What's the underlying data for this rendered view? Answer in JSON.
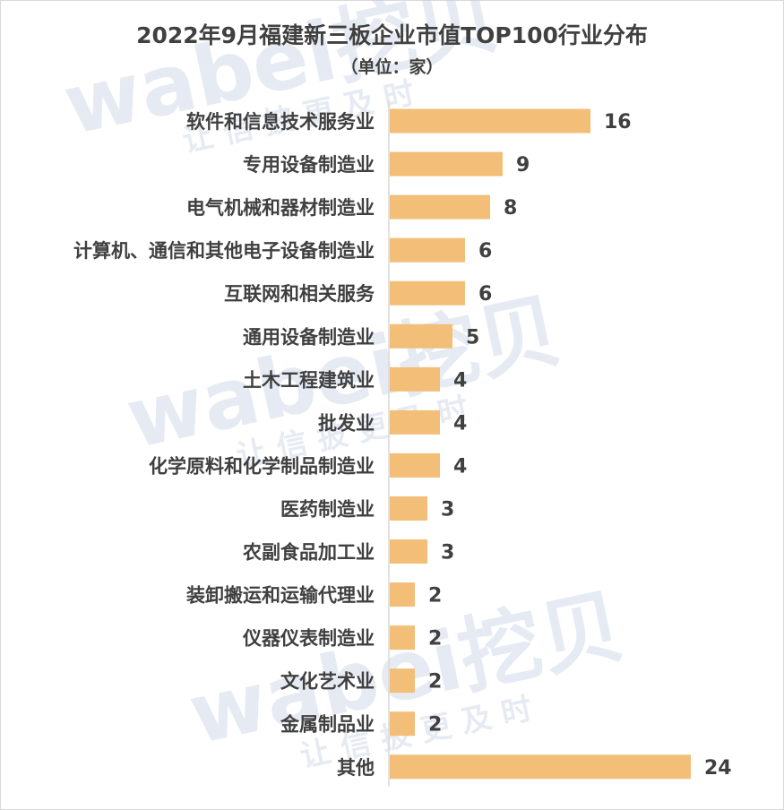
{
  "title": "2022年9月福建新三板企业市值TOP100行业分布",
  "subtitle": "（单位：家）",
  "watermark": {
    "brand": "wabei挖贝",
    "slogan": "让 信 披 更 及 时"
  },
  "colors": {
    "bar": "#F2BE78",
    "axis": "#d9d9d9",
    "text": "#404040"
  },
  "chart_data": {
    "type": "bar",
    "orientation": "horizontal",
    "categories": [
      "软件和信息技术服务业",
      "专用设备制造业",
      "电气机械和器材制造业",
      "计算机、通信和其他电子设备制造业",
      "互联网和相关服务",
      "通用设备制造业",
      "土木工程建筑业",
      "批发业",
      "化学原料和化学制品制造业",
      "医药制造业",
      "农副食品加工业",
      "装卸搬运和运输代理业",
      "仪器仪表制造业",
      "文化艺术业",
      "金属制品业",
      "其他"
    ],
    "values": [
      16,
      9,
      8,
      6,
      6,
      5,
      4,
      4,
      4,
      3,
      3,
      2,
      2,
      2,
      2,
      24
    ],
    "xlim": [
      0,
      24
    ],
    "grid": false,
    "legend": "none"
  }
}
